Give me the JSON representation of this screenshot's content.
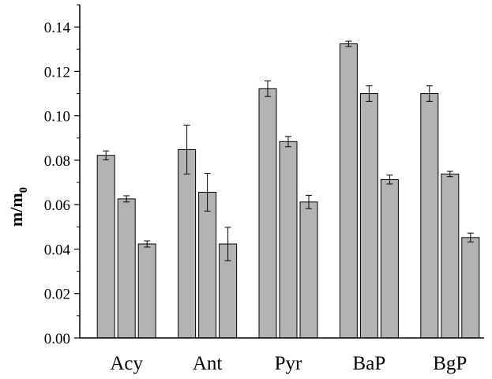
{
  "chart_data": {
    "type": "bar",
    "categories": [
      "Acy",
      "Ant",
      "Pyr",
      "BaP",
      "BgP"
    ],
    "series": [
      {
        "values": [
          0.0822,
          0.0848,
          0.1122,
          0.1324,
          0.11
        ],
        "errors": [
          0.002,
          0.011,
          0.0035,
          0.0012,
          0.0035
        ]
      },
      {
        "values": [
          0.0626,
          0.0656,
          0.0884,
          0.11,
          0.0738
        ],
        "errors": [
          0.0014,
          0.0085,
          0.0023,
          0.0035,
          0.0012
        ]
      },
      {
        "values": [
          0.0423,
          0.0423,
          0.0612,
          0.0713,
          0.0452
        ],
        "errors": [
          0.0014,
          0.0075,
          0.003,
          0.002,
          0.002
        ]
      }
    ],
    "bar_color": "#b3b3b3",
    "ylabel": "m/m",
    "ylabel_subscript": "0",
    "ylim": [
      0,
      0.15
    ],
    "yticks": [
      "0.00",
      "0.02",
      "0.04",
      "0.06",
      "0.08",
      "0.10",
      "0.12",
      "0.14"
    ],
    "grid": false,
    "legend": false
  }
}
